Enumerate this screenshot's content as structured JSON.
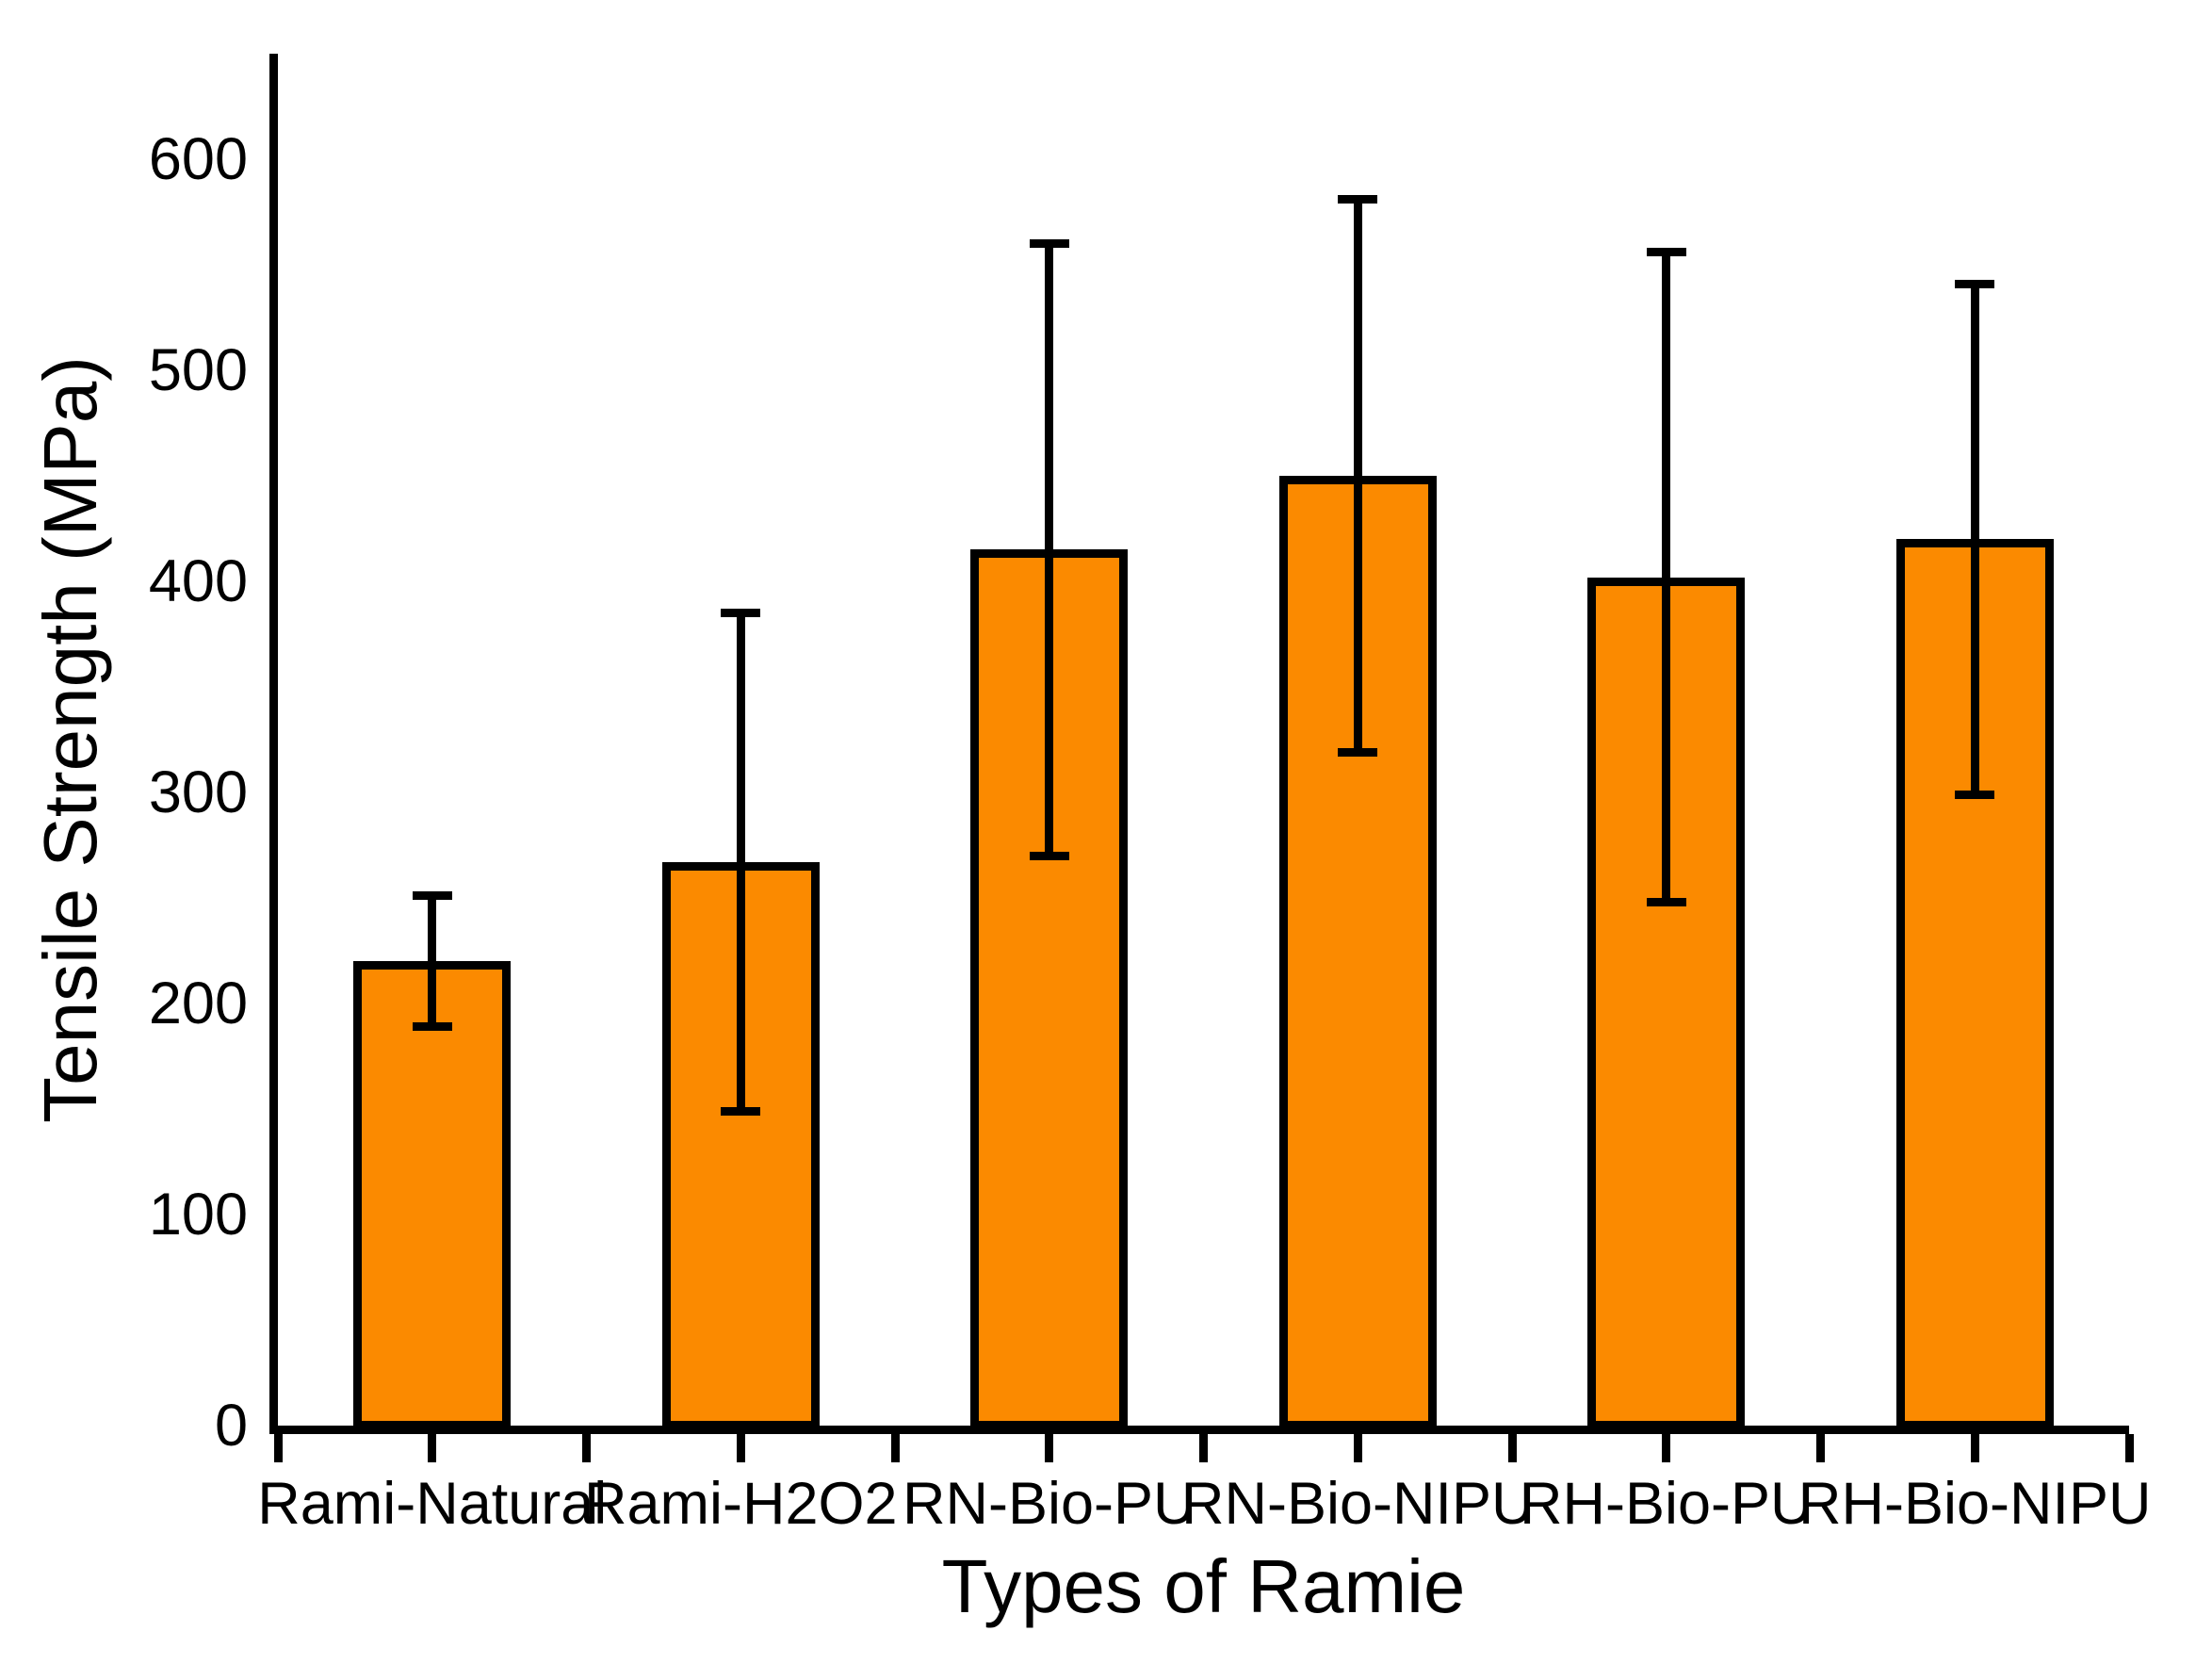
{
  "chart_data": {
    "type": "bar",
    "title": "",
    "xlabel": "Types of Ramie",
    "ylabel": "Tensile Strength (MPa)",
    "categories": [
      "Rami-Natural",
      "Rami-H2O2",
      "RN-Bio-PU",
      "RN-Bio-NIPU",
      "RH-Bio-PU",
      "RH-Bio-NIPU"
    ],
    "series": [
      {
        "name": "Tensile Strength",
        "values": [
          220,
          267,
          415,
          450,
          402,
          420
        ],
        "errors": [
          31,
          118,
          145,
          131,
          154,
          121
        ]
      }
    ],
    "ylim": [
      0,
      650
    ],
    "yticks": [
      0,
      100,
      200,
      300,
      400,
      500,
      600
    ],
    "grid": false,
    "legend_position": "none",
    "bar_color": "#FB8A00",
    "bar_border_color": "#000000",
    "axis_color": "#000000",
    "error_bar_color": "#000000"
  }
}
